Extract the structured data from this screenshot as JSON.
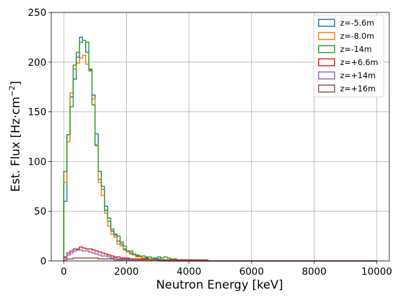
{
  "chart_data": {
    "type": "histogram-step",
    "xlabel": "Neutron Energy [keV]",
    "ylabel_main": "Est. Flux [Hz·cm",
    "ylabel_sup": "−2",
    "ylabel_end": "]",
    "xlim": [
      -400,
      10400
    ],
    "ylim": [
      0,
      250
    ],
    "x_ticks": [
      0,
      2000,
      4000,
      6000,
      8000,
      10000
    ],
    "x_tick_labels": [
      "0",
      "2000",
      "4000",
      "6000",
      "8000",
      "10000"
    ],
    "y_ticks": [
      0,
      50,
      100,
      150,
      200,
      250
    ],
    "y_tick_labels": [
      "0",
      "50",
      "100",
      "150",
      "200",
      "250"
    ],
    "grid": true,
    "legend_position": "top-right",
    "bin_edges": [
      0,
      100,
      200,
      300,
      400,
      500,
      600,
      700,
      800,
      900,
      1000,
      1100,
      1200,
      1300,
      1400,
      1500,
      1600,
      1700,
      1800,
      1900,
      2000,
      2100,
      2200,
      2300,
      2400,
      2500,
      2600,
      2700,
      2800,
      2900,
      3000,
      3100,
      3200,
      3300,
      3400,
      3500,
      3600,
      3700,
      3800,
      3900,
      4000,
      4100,
      4200,
      4300,
      4400,
      4500,
      4600,
      4700,
      4800,
      4900,
      5000,
      5100,
      5200,
      5300,
      5400,
      5500,
      5600,
      5700,
      5800,
      5900,
      6000,
      6100,
      6200,
      6300,
      6400,
      6500,
      6600,
      6700,
      6800,
      6900,
      7000,
      7100,
      7200,
      7300,
      7400,
      7500,
      7600,
      7700,
      7800,
      7900,
      8000,
      8100,
      8200,
      8300,
      8400,
      8500,
      8600,
      8700,
      8800,
      8900,
      9000,
      9100,
      9200,
      9300,
      9400,
      9500,
      9600,
      9700,
      9800,
      9900,
      10000
    ],
    "series": [
      {
        "name": "z=-5.6m",
        "color": "#1f77b4",
        "values": [
          60,
          127,
          165,
          183,
          205,
          225,
          222,
          210,
          192,
          167,
          128,
          82,
          72,
          55,
          40,
          30,
          26,
          20,
          17,
          12,
          10,
          8,
          6,
          5,
          4,
          3,
          3,
          2,
          2,
          2,
          2,
          1,
          1,
          1,
          1,
          1,
          1,
          1,
          0,
          0,
          0,
          0,
          0,
          0,
          0,
          0,
          0,
          0,
          0,
          0,
          0,
          0,
          0,
          0,
          0,
          0,
          0,
          0,
          0,
          0,
          0,
          0,
          0,
          0,
          0,
          0,
          0,
          0,
          0,
          0,
          0,
          0,
          0,
          0,
          0,
          0,
          0,
          0,
          0,
          0,
          0,
          0,
          0,
          0,
          0,
          0,
          0,
          0,
          0,
          0,
          0,
          0,
          0,
          0,
          0,
          0,
          0,
          0,
          0,
          0
        ]
      },
      {
        "name": "z=-8.0m",
        "color": "#ff7f0e",
        "values": [
          79,
          120,
          169,
          193,
          199,
          204,
          207,
          198,
          191,
          163,
          117,
          79,
          66,
          48,
          35,
          27,
          24,
          17,
          15,
          11,
          9,
          7,
          6,
          4,
          4,
          3,
          2,
          2,
          2,
          1,
          1,
          1,
          1,
          1,
          1,
          1,
          0,
          0,
          0,
          0,
          0,
          0,
          0,
          0,
          0,
          0,
          0,
          0,
          0,
          0,
          0,
          0,
          0,
          0,
          0,
          0,
          0,
          0,
          0,
          0,
          0,
          0,
          0,
          0,
          0,
          0,
          0,
          0,
          0,
          0,
          0,
          0,
          0,
          0,
          0,
          0,
          0,
          0,
          0,
          0,
          0,
          0,
          0,
          0,
          0,
          0,
          0,
          0,
          0,
          0,
          0,
          0,
          0,
          0,
          0,
          0,
          0,
          0,
          0,
          0
        ]
      },
      {
        "name": "z=-14m",
        "color": "#2ca02c",
        "values": [
          90,
          127,
          155,
          197,
          210,
          220,
          222,
          220,
          193,
          157,
          116,
          90,
          75,
          51,
          43,
          32,
          27,
          25,
          19,
          15,
          10,
          10,
          7,
          6,
          5,
          5,
          4,
          4,
          3,
          3,
          4,
          3,
          4,
          3,
          2,
          2,
          1,
          1,
          1,
          1,
          1,
          1,
          1,
          1,
          0,
          0,
          0,
          0,
          0,
          0,
          0,
          0,
          0,
          0,
          0,
          0,
          0,
          0,
          0,
          0,
          0,
          0,
          0,
          0,
          0,
          0,
          0,
          0,
          0,
          0,
          0,
          0,
          0,
          0,
          0,
          0,
          0,
          0,
          0,
          0,
          0,
          0,
          0,
          0,
          0,
          0,
          0,
          0,
          0,
          0,
          0,
          0,
          0,
          0,
          0,
          0,
          0,
          0,
          0,
          0
        ]
      },
      {
        "name": "z=+6.6m",
        "color": "#d62728",
        "values": [
          4,
          8,
          10,
          12,
          12,
          14,
          13,
          12,
          12,
          11,
          10,
          9,
          8,
          7,
          6,
          5,
          4,
          4,
          3,
          3,
          3,
          2,
          2,
          2,
          2,
          2,
          2,
          1,
          1,
          1,
          1,
          1,
          1,
          1,
          1,
          1,
          1,
          1,
          1,
          1,
          1,
          1,
          1,
          1,
          1,
          1,
          0,
          0,
          0,
          0,
          0,
          0,
          0,
          0,
          0,
          0,
          0,
          0,
          0,
          0,
          0,
          0,
          0,
          0,
          0,
          0,
          0,
          0,
          0,
          0,
          0,
          0,
          0,
          0,
          0,
          0,
          0,
          0,
          0,
          0,
          0,
          0,
          0,
          0,
          0,
          0,
          0,
          0,
          0,
          0,
          0,
          0,
          0,
          0,
          0,
          0,
          0,
          0,
          0,
          0
        ]
      },
      {
        "name": "z=+14m",
        "color": "#9467bd",
        "values": [
          3,
          6,
          8,
          10,
          11,
          11,
          10,
          10,
          9,
          8,
          7,
          6,
          5,
          5,
          4,
          3,
          3,
          2,
          2,
          2,
          2,
          1,
          1,
          1,
          1,
          1,
          1,
          1,
          1,
          1,
          1,
          0,
          0,
          0,
          0,
          0,
          0,
          0,
          0,
          0,
          0,
          0,
          0,
          0,
          0,
          0,
          0,
          0,
          0,
          0,
          0,
          0,
          0,
          0,
          0,
          0,
          0,
          0,
          0,
          0,
          0,
          0,
          0,
          0,
          0,
          0,
          0,
          0,
          0,
          0,
          0,
          0,
          0,
          0,
          0,
          0,
          0,
          0,
          0,
          0,
          0,
          0,
          0,
          0,
          0,
          0,
          0,
          0,
          0,
          0,
          0,
          0,
          0,
          0,
          0,
          0,
          0,
          0,
          0,
          0
        ]
      },
      {
        "name": "z=+16m",
        "color": "#8c564b",
        "values": [
          1,
          2,
          2,
          3,
          3,
          3,
          3,
          3,
          3,
          3,
          3,
          2,
          2,
          2,
          2,
          2,
          1,
          1,
          1,
          1,
          1,
          1,
          1,
          1,
          1,
          1,
          1,
          1,
          1,
          1,
          0,
          0,
          0,
          0,
          0,
          0,
          0,
          0,
          0,
          0,
          0,
          0,
          0,
          0,
          0,
          0,
          0,
          0,
          0,
          0,
          0,
          0,
          0,
          0,
          0,
          0,
          0,
          0,
          0,
          0,
          0,
          0,
          0,
          0,
          0,
          0,
          0,
          0,
          0,
          0,
          0,
          0,
          0,
          0,
          0,
          0,
          0,
          0,
          0,
          0,
          0,
          0,
          0,
          0,
          0,
          0,
          0,
          0,
          0,
          0,
          0,
          0,
          0,
          0,
          0,
          0,
          0,
          0,
          0,
          0
        ]
      }
    ]
  }
}
